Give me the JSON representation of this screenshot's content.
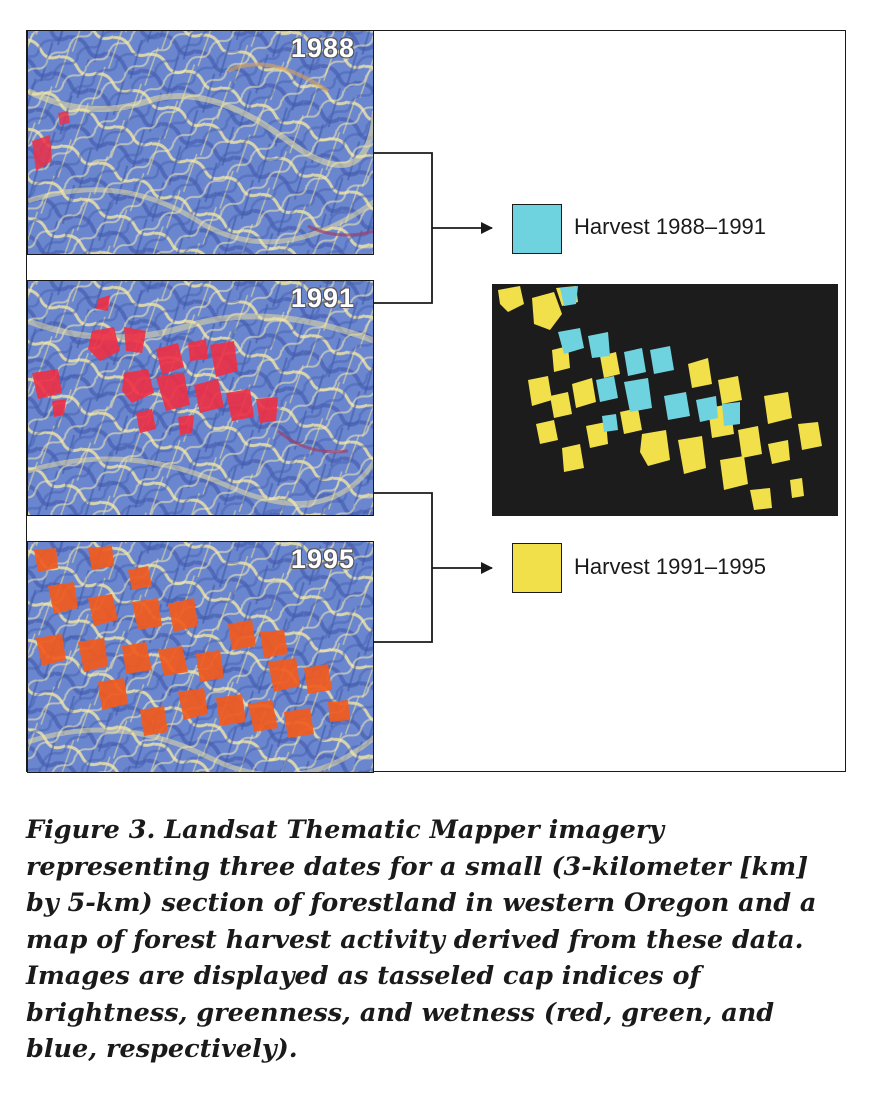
{
  "figure": {
    "images": [
      {
        "year": "1988"
      },
      {
        "year": "1991"
      },
      {
        "year": "1995"
      }
    ],
    "legend": [
      {
        "label": "Harvest 1988–1991",
        "color": "#6fd3df"
      },
      {
        "label": "Harvest 1991–1995",
        "color": "#f2e04a"
      }
    ]
  },
  "colors": {
    "terrain_blue": "#5f7bc8",
    "terrain_yellow": "#efe3a0",
    "harvest_red": "#ef2f44",
    "harvest_orange": "#f25b1e",
    "map_bg": "#1c1c1c"
  },
  "caption": "Figure 3. Landsat Thematic Mapper imagery representing three dates for a small (3-kilometer [km] by 5-km) section of forestland in western Oregon and a map of forest harvest activity derived from these data. Images are displayed as tasseled cap indices of brightness, greenness, and wetness (red, green, and blue, respectively)."
}
